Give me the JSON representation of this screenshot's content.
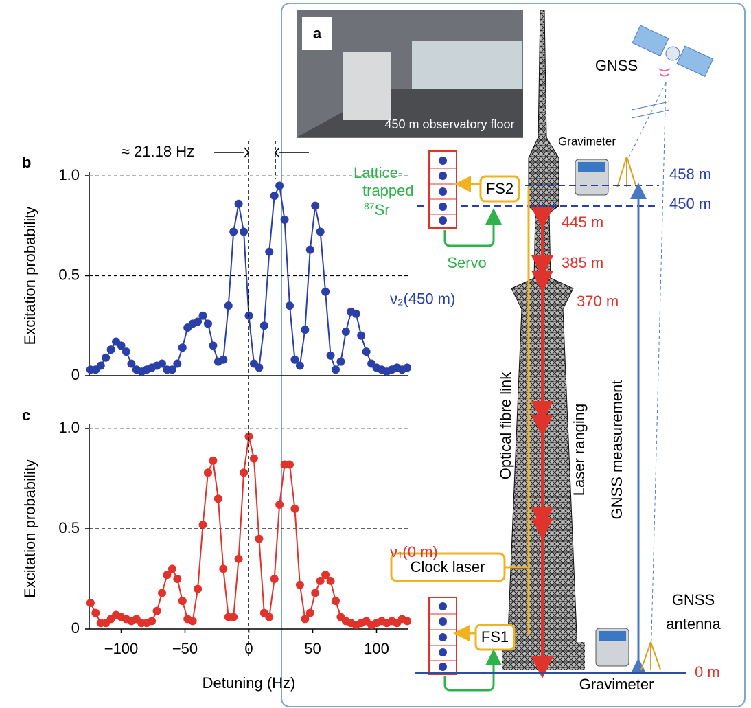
{
  "chart_data": [
    {
      "type": "line",
      "panel_label": "b",
      "y_label": "Excitation probability",
      "annotation": "≈ 21.18 Hz",
      "x": [
        -124,
        -120,
        -116,
        -112,
        -108,
        -104,
        -100,
        -96,
        -92,
        -88,
        -84,
        -80,
        -76,
        -72,
        -68,
        -64,
        -60,
        -56,
        -52,
        -48,
        -44,
        -40,
        -36,
        -32,
        -28,
        -24,
        -20,
        -16,
        -12,
        -8,
        -4,
        0,
        4,
        8,
        12,
        16,
        20,
        24,
        28,
        32,
        36,
        40,
        44,
        48,
        52,
        56,
        60,
        64,
        68,
        72,
        76,
        80,
        84,
        88,
        92,
        96,
        100,
        104,
        108,
        112,
        116,
        120,
        124
      ],
      "series": [
        {
          "name": "ν₂(450 m)",
          "color": "#2b3fa8",
          "values": [
            0.03,
            0.03,
            0.05,
            0.09,
            0.13,
            0.17,
            0.15,
            0.12,
            0.06,
            0.03,
            0.02,
            0.03,
            0.04,
            0.05,
            0.06,
            0.03,
            0.03,
            0.06,
            0.14,
            0.24,
            0.26,
            0.27,
            0.3,
            0.26,
            0.15,
            0.07,
            0.08,
            0.35,
            0.72,
            0.86,
            0.72,
            0.3,
            0.06,
            0.04,
            0.25,
            0.62,
            0.9,
            0.95,
            0.78,
            0.35,
            0.08,
            0.05,
            0.23,
            0.63,
            0.85,
            0.72,
            0.42,
            0.1,
            0.03,
            0.07,
            0.22,
            0.32,
            0.31,
            0.2,
            0.12,
            0.06,
            0.04,
            0.03,
            0.02,
            0.03,
            0.04,
            0.03,
            0.04
          ]
        }
      ],
      "xlim": [
        -125,
        125
      ],
      "ylim": [
        0,
        1
      ],
      "yticks": [
        0,
        0.5,
        {
          "value": 1,
          "label": "1.0"
        }
      ],
      "grid": true
    },
    {
      "type": "line",
      "panel_label": "c",
      "y_label": "Excitation probability",
      "x_label": "Detuning (Hz)",
      "x": [
        -124,
        -120,
        -116,
        -112,
        -108,
        -104,
        -100,
        -96,
        -92,
        -88,
        -84,
        -80,
        -76,
        -72,
        -68,
        -64,
        -60,
        -56,
        -52,
        -48,
        -44,
        -40,
        -36,
        -32,
        -28,
        -24,
        -20,
        -16,
        -12,
        -8,
        -4,
        0,
        4,
        8,
        12,
        16,
        20,
        24,
        28,
        32,
        36,
        40,
        44,
        48,
        52,
        56,
        60,
        64,
        68,
        72,
        76,
        80,
        84,
        88,
        92,
        96,
        100,
        104,
        108,
        112,
        116,
        120,
        124
      ],
      "series": [
        {
          "name": "ν₁(0 m)",
          "color": "#e0332b",
          "values": [
            0.13,
            0.08,
            0.03,
            0.03,
            0.05,
            0.07,
            0.06,
            0.05,
            0.04,
            0.05,
            0.03,
            0.03,
            0.04,
            0.09,
            0.18,
            0.27,
            0.3,
            0.25,
            0.14,
            0.05,
            0.04,
            0.2,
            0.52,
            0.78,
            0.84,
            0.65,
            0.3,
            0.06,
            0.06,
            0.35,
            0.78,
            0.96,
            0.85,
            0.45,
            0.08,
            0.06,
            0.25,
            0.62,
            0.82,
            0.82,
            0.6,
            0.22,
            0.05,
            0.08,
            0.18,
            0.24,
            0.27,
            0.24,
            0.14,
            0.06,
            0.04,
            0.03,
            0.02,
            0.03,
            0.04,
            0.02,
            0.03,
            0.04,
            0.03,
            0.04,
            0.03,
            0.05,
            0.04
          ]
        }
      ],
      "xlim": [
        -125,
        125
      ],
      "ylim": [
        0,
        1
      ],
      "xticks": [
        {
          "value": -100,
          "label": "−100"
        },
        {
          "value": -50,
          "label": "−50"
        },
        0,
        50,
        100
      ],
      "yticks": [
        0,
        0.5,
        {
          "value": 1,
          "label": "1.0"
        }
      ],
      "grid": true
    }
  ],
  "diagram": {
    "panel_label": "a",
    "photo_caption": "450 m observatory floor",
    "gnss": "GNSS",
    "gravimeter_top": "Gravimeter",
    "lattice": [
      "Lattice-",
      "trapped"
    ],
    "isotope_mass": "87",
    "isotope": "Sr",
    "fs2": "FS2",
    "servo": "Servo",
    "h458": "458 m",
    "h450": "450 m",
    "h445": "445 m",
    "h385": "385 m",
    "h370": "370 m",
    "fibre": "Optical fibre link",
    "laser_ranging": "Laser ranging",
    "gnss_measurement": "GNSS measurement",
    "clock_laser": "Clock laser",
    "fs1": "FS1",
    "gnss_antenna": [
      "GNSS",
      "antenna"
    ],
    "gravimeter_bottom": "Gravimeter",
    "h0": "0 m"
  }
}
